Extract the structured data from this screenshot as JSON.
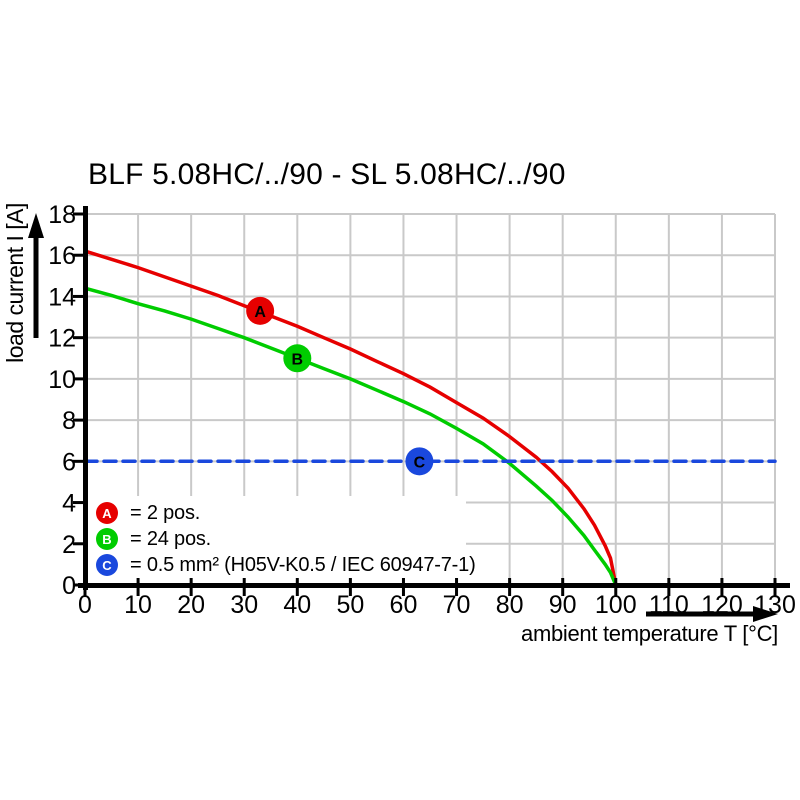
{
  "title": "BLF 5.08HC/../90 - SL 5.08HC/../90",
  "colors": {
    "series_a_red": "#e60000",
    "series_b_green": "#00cc00",
    "series_c_blue": "#1a48dd",
    "grid": "#c9c9c9",
    "axis": "#000000"
  },
  "legend": {
    "items": [
      {
        "letter": "A",
        "color": "#e60000",
        "text": "= 2 pos."
      },
      {
        "letter": "B",
        "color": "#00cc00",
        "text": "= 24 pos."
      },
      {
        "letter": "C",
        "color": "#1a48dd",
        "text": "= 0.5 mm² (H05V-K0.5 / IEC 60947-7-1)"
      }
    ]
  },
  "chart_data": {
    "type": "line",
    "title": "BLF 5.08HC/../90 - SL 5.08HC/../90",
    "xlabel": "ambient temperature T [°C]",
    "ylabel": "load current I [A]",
    "xlim": [
      0,
      130
    ],
    "ylim": [
      0,
      18
    ],
    "x_ticks": [
      0,
      10,
      20,
      30,
      40,
      50,
      60,
      70,
      80,
      90,
      100,
      110,
      120,
      130
    ],
    "y_ticks": [
      0,
      2,
      4,
      6,
      8,
      10,
      12,
      14,
      16,
      18
    ],
    "grid": true,
    "legend_position": "inside bottom-left",
    "series": [
      {
        "name": "A",
        "label": "= 2 pos.",
        "color": "#e60000",
        "style": "solid",
        "x": [
          0,
          5,
          10,
          15,
          20,
          25,
          30,
          35,
          40,
          45,
          50,
          55,
          60,
          65,
          70,
          75,
          80,
          85,
          88,
          91,
          94,
          96,
          98,
          99,
          100
        ],
        "y": [
          16.2,
          15.8,
          15.4,
          14.95,
          14.5,
          14.05,
          13.55,
          13.05,
          12.55,
          12.0,
          11.45,
          10.85,
          10.25,
          9.6,
          8.85,
          8.1,
          7.2,
          6.2,
          5.5,
          4.7,
          3.7,
          2.9,
          1.9,
          1.3,
          0
        ],
        "marker": {
          "letter": "A",
          "T": 33,
          "I": 13.3
        }
      },
      {
        "name": "B",
        "label": "= 24 pos.",
        "color": "#00cc00",
        "style": "solid",
        "x": [
          0,
          5,
          10,
          15,
          20,
          25,
          30,
          35,
          40,
          45,
          50,
          55,
          60,
          65,
          70,
          75,
          80,
          85,
          88,
          91,
          94,
          96,
          98,
          99,
          100
        ],
        "y": [
          14.4,
          14.05,
          13.65,
          13.3,
          12.9,
          12.45,
          12.0,
          11.5,
          11.0,
          10.5,
          10.0,
          9.45,
          8.9,
          8.3,
          7.6,
          6.85,
          5.9,
          4.8,
          4.1,
          3.3,
          2.4,
          1.7,
          1.0,
          0.6,
          0
        ],
        "marker": {
          "letter": "B",
          "T": 40,
          "I": 11.0
        }
      },
      {
        "name": "C",
        "label": "= 0.5 mm² (H05V-K0.5 / IEC 60947-7-1)",
        "color": "#1a48dd",
        "style": "dashed",
        "x": [
          0,
          130
        ],
        "y": [
          6,
          6
        ],
        "marker": {
          "letter": "C",
          "T": 63,
          "I": 6.0
        }
      }
    ]
  }
}
